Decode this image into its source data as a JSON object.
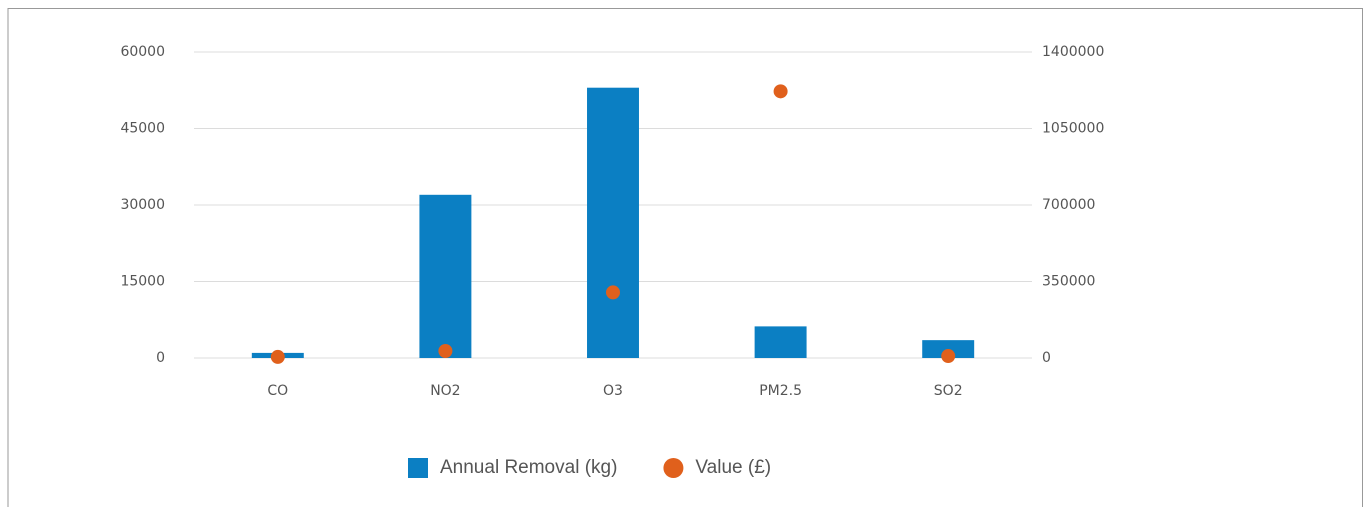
{
  "chart_data": {
    "type": "bar",
    "categories": [
      "CO",
      "NO2",
      "O3",
      "PM2.5",
      "SO2"
    ],
    "series": [
      {
        "name": "Annual Removal (kg)",
        "type": "bar",
        "color": "#0b7fc3",
        "values": [
          1000,
          32000,
          53000,
          6200,
          3500
        ]
      },
      {
        "name": "Value (£)",
        "type": "scatter",
        "color": "#e0601c",
        "axis": "y2",
        "values": [
          5000,
          32000,
          300000,
          1220000,
          9000
        ]
      }
    ],
    "ylim": [
      0,
      60000
    ],
    "yticks": [
      0,
      15000,
      30000,
      45000,
      60000
    ],
    "y2lim": [
      0,
      1400000
    ],
    "y2ticks": [
      0,
      350000,
      700000,
      1050000,
      1400000
    ],
    "grid": true,
    "legend": "bottom"
  }
}
